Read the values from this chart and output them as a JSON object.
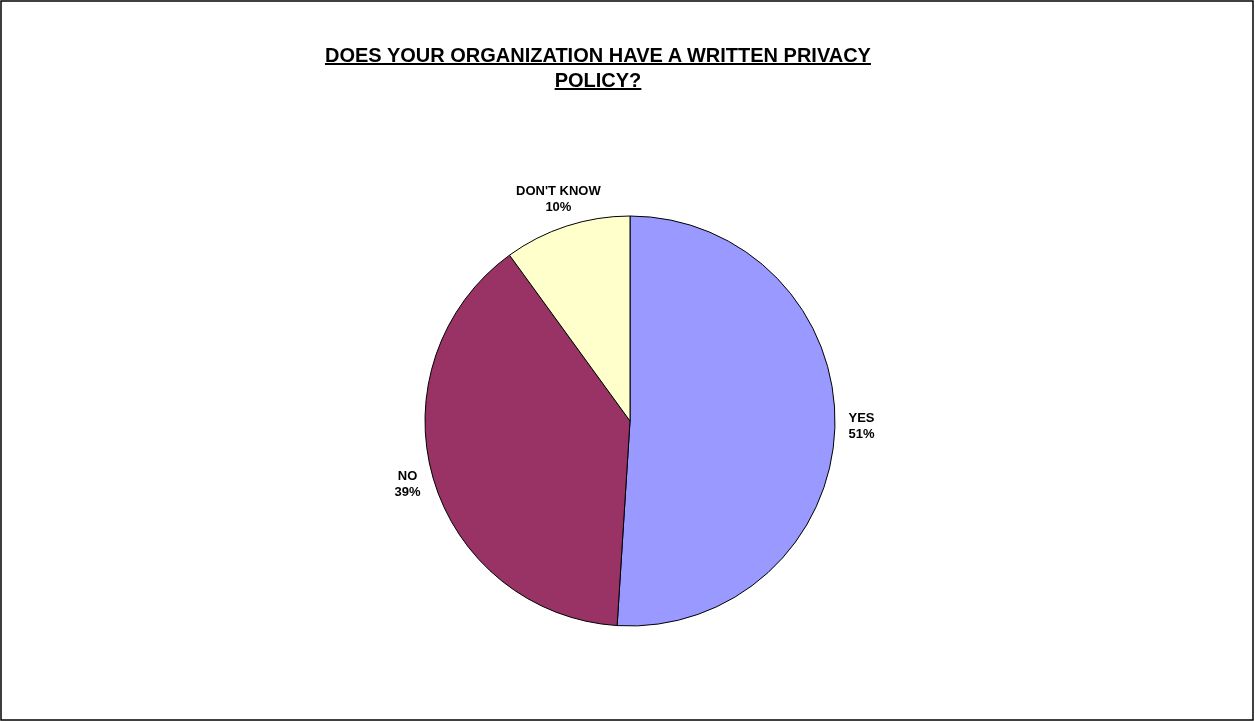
{
  "chart_data": {
    "type": "pie",
    "title": "DOES YOUR ORGANIZATION HAVE A WRITTEN PRIVACY POLICY?",
    "categories": [
      "YES",
      "NO",
      "DON'T KNOW"
    ],
    "values": [
      51,
      39,
      10
    ],
    "colors": [
      "#9999ff",
      "#993366",
      "#ffffcc"
    ],
    "value_labels": [
      "51%",
      "39%",
      "10%"
    ],
    "legend": false
  }
}
